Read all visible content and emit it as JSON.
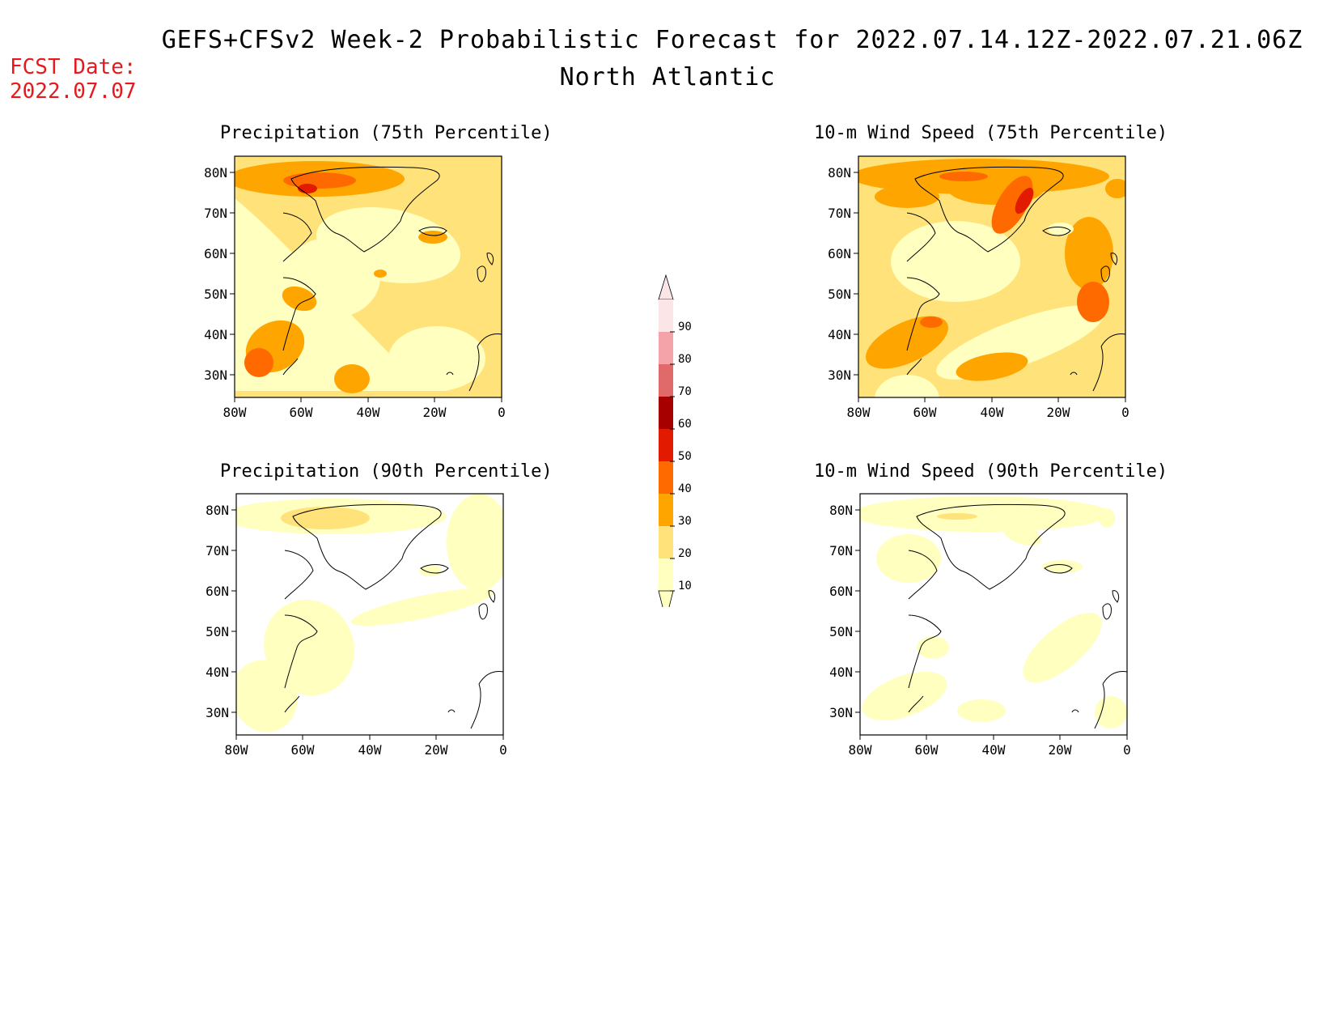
{
  "header": {
    "title": "GEFS+CFSv2 Week-2 Probabilistic Forecast for 2022.07.14.12Z-2022.07.21.06Z",
    "region": "North Atlantic",
    "fcst_label": "FCST Date:",
    "fcst_date": "2022.07.07"
  },
  "axes": {
    "lat_labels": [
      "80N",
      "70N",
      "60N",
      "50N",
      "40N",
      "30N"
    ],
    "lon_labels": [
      "80W",
      "60W",
      "40W",
      "20W",
      "0"
    ]
  },
  "panels": [
    {
      "id": "precip-75",
      "title": "Precipitation (75th Percentile)"
    },
    {
      "id": "precip-90",
      "title": "Precipitation (90th Percentile)"
    },
    {
      "id": "wind-75",
      "title": "10-m Wind Speed (75th Percentile)"
    },
    {
      "id": "wind-90",
      "title": "10-m Wind Speed (90th Percentile)"
    }
  ],
  "colorbar": {
    "labels": [
      "90",
      "80",
      "70",
      "60",
      "50",
      "40",
      "30",
      "20",
      "10"
    ],
    "colors": [
      "#fbe5e6",
      "#f4a3a8",
      "#e06a6a",
      "#a60000",
      "#e21a00",
      "#ff6a00",
      "#ffa500",
      "#ffe37a",
      "#ffffc0"
    ]
  }
}
